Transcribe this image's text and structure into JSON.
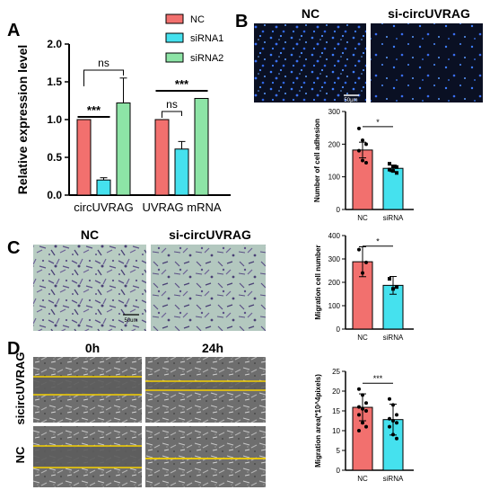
{
  "panels": {
    "A": "A",
    "B": "B",
    "C": "C",
    "D": "D"
  },
  "colors": {
    "nc": "#f2706e",
    "sirna1": "#45e1ee",
    "sirna2": "#8de4a6",
    "bar_stroke": "#000000",
    "yellow": "#f5d000",
    "dapi_bg": "#0a1023",
    "dapi_dot": "#3d7dff",
    "stain_bg": "#b8ccc2",
    "stain_cell": "#5a4f85"
  },
  "chart_data": [
    {
      "id": "A",
      "type": "bar",
      "ylabel": "Relative expression level",
      "ylim": [
        0,
        2.0
      ],
      "yticks": [
        "0.0",
        "0.5",
        "1.0",
        "1.5",
        "2.0"
      ],
      "categories": [
        "circUVRAG",
        "UVRAG mRNA"
      ],
      "series": [
        {
          "name": "NC",
          "values": [
            1.0,
            1.0
          ],
          "err": [
            0,
            0
          ]
        },
        {
          "name": "siRNA1",
          "values": [
            0.2,
            0.61
          ],
          "err": [
            0.03,
            0.1
          ]
        },
        {
          "name": "siRNA2",
          "values": [
            1.22,
            1.28
          ],
          "err": [
            0.33,
            0.0
          ]
        }
      ],
      "annotations": {
        "c1_ns": "ns",
        "c1_sig": "***",
        "c2_ns": "ns",
        "c2_sig": "***"
      }
    },
    {
      "id": "B",
      "type": "bar",
      "ylabel": "Number of cell adhesion",
      "ylim": [
        0,
        300
      ],
      "yticks": [
        "0",
        "100",
        "200",
        "300"
      ],
      "categories": [
        "NC",
        "siRNA"
      ],
      "values": [
        182,
        126
      ],
      "err": [
        24,
        10
      ],
      "points": [
        [
          248,
          212,
          200,
          180,
          150,
          143
        ],
        [
          140,
          132,
          130,
          122,
          118,
          112
        ]
      ],
      "sig": "*"
    },
    {
      "id": "C",
      "type": "bar",
      "ylabel": "Migration cell number",
      "ylim": [
        0,
        400
      ],
      "yticks": [
        "0",
        "100",
        "200",
        "300",
        "400"
      ],
      "categories": [
        "NC",
        "siRNA"
      ],
      "values": [
        288,
        187
      ],
      "err": [
        64,
        38
      ],
      "points": [
        [
          340,
          240,
          285
        ],
        [
          215,
          172,
          180
        ]
      ],
      "sig": "*"
    },
    {
      "id": "D",
      "type": "bar",
      "ylabel": "Migration area(*10^4pixels)",
      "ylim": [
        0,
        25
      ],
      "yticks": [
        "0",
        "5",
        "10",
        "15",
        "20",
        "25"
      ],
      "categories": [
        "NC",
        "siRNA"
      ],
      "values": [
        15.9,
        12.8
      ],
      "err": [
        3.4,
        3.9
      ],
      "points": [
        [
          20.5,
          19,
          17,
          16,
          15.5,
          15,
          14,
          12,
          11,
          10
        ],
        [
          18,
          16.5,
          14,
          13,
          12.5,
          12,
          11,
          9,
          8
        ]
      ],
      "sig": "***"
    }
  ],
  "images": {
    "b_left_label": "NC",
    "b_right_label": "si-circUVRAG",
    "b_scale": "50μm",
    "c_left_label": "NC",
    "c_right_label": "si-circUVRAG",
    "c_scale": "50um",
    "d_col1": "0h",
    "d_col2": "24h",
    "d_row1": "sicircUVRAG",
    "d_row2": "NC"
  }
}
